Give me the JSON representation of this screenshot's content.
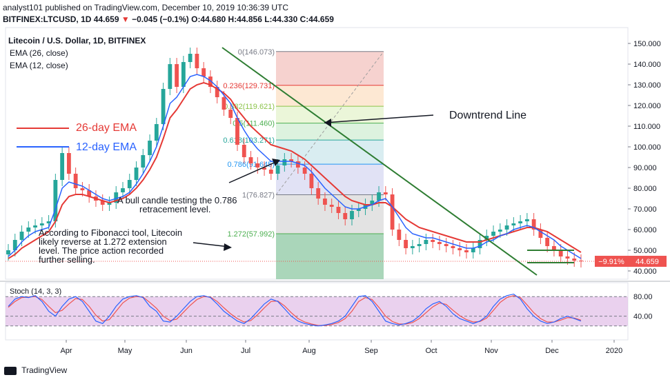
{
  "header": {
    "publisher_line": "analyst101 published on TradingView.com, December 10, 2019 10:36:39 UTC",
    "symbol": "BITFINEX:LTCUSD, 1D",
    "last": "44.659",
    "change_arrow": "▼",
    "change": "−0.045 (−0.1%)",
    "ohlc": "O:44.680 H:44.856 L:44.330 C:44.659"
  },
  "legend": {
    "title": "Litecoin / U.S. Dollar, 1D, BITFINEX",
    "ema26": "EMA (26, close)",
    "ema12": "EMA (12, close)",
    "ema26_label": "26-day EMA",
    "ema12_label": "12-day EMA"
  },
  "annotations": {
    "downtrend": "Downtrend Line",
    "bull_line1": "A bull candle testing the 0.786",
    "bull_line2": "retracement level.",
    "fib_line1": "According to Fibonacci tool, Litecoin",
    "fib_line2": "likely reverse at 1.272 extension",
    "fib_line3": "level. The price action recorded",
    "fib_line4": "further selling."
  },
  "price_tag": {
    "pct": "−9.91%",
    "value": "44.659"
  },
  "stoch_label": "Stoch (14, 3, 3)",
  "footer": {
    "brand": "TradingView"
  },
  "colors": {
    "ema26": "#e53935",
    "ema12": "#2962ff",
    "up": "#26a69a",
    "down": "#ef5350",
    "trend": "#2e7d32",
    "stoch_bg": "#e1bee7"
  },
  "chart_data": {
    "type": "candlestick",
    "price_axis": {
      "ylim": [
        36,
        155
      ],
      "ticks": [
        40,
        50,
        60,
        70,
        80,
        90,
        100,
        110,
        120,
        130,
        140,
        150
      ]
    },
    "time_axis": {
      "labels": [
        "Apr",
        "May",
        "Jun",
        "Jul",
        "Aug",
        "Sep",
        "Oct",
        "Nov",
        "Dec",
        "2020"
      ]
    },
    "close_series": [
      50,
      55,
      59,
      61,
      62,
      63,
      64,
      84,
      97,
      87,
      80,
      79,
      76,
      74,
      72,
      73,
      78,
      80,
      84,
      90,
      96,
      103,
      111,
      128,
      140,
      129,
      141,
      145,
      138,
      134,
      129,
      124,
      118,
      114,
      101,
      95,
      92,
      90,
      89,
      87,
      91,
      94,
      93,
      90,
      87,
      80,
      75,
      72,
      71,
      68,
      65,
      69,
      70,
      72,
      74,
      78,
      77,
      60,
      55,
      51,
      52,
      53,
      55,
      54,
      53,
      52,
      51,
      50,
      49,
      51,
      55,
      57,
      59,
      60,
      62,
      63,
      64,
      65,
      60,
      56,
      52,
      50,
      47,
      46,
      45,
      44.659
    ],
    "ema26_series": [
      46,
      48,
      51,
      53,
      55,
      57,
      59,
      64,
      72,
      76,
      77,
      77,
      76,
      75,
      74,
      73,
      74,
      75,
      77,
      80,
      84,
      89,
      95,
      104,
      114,
      118,
      123,
      128,
      130,
      131,
      130,
      128,
      126,
      123,
      118,
      114,
      110,
      107,
      104,
      101,
      100,
      99,
      98,
      96,
      94,
      91,
      88,
      85,
      82,
      79,
      76,
      74,
      73,
      72,
      72,
      73,
      73,
      71,
      68,
      65,
      63,
      61,
      60,
      59,
      58,
      57,
      56,
      55,
      54,
      54,
      54,
      55,
      56,
      57,
      58,
      59,
      60,
      61,
      61,
      60,
      59,
      57,
      55,
      53,
      51,
      49
    ],
    "ema12_series": [
      47,
      50,
      54,
      57,
      59,
      60,
      61,
      70,
      80,
      83,
      82,
      81,
      79,
      77,
      75,
      74,
      75,
      76,
      78,
      82,
      87,
      93,
      100,
      110,
      121,
      124,
      129,
      134,
      135,
      134,
      132,
      129,
      125,
      121,
      114,
      108,
      103,
      99,
      96,
      93,
      93,
      93,
      93,
      92,
      91,
      88,
      84,
      80,
      77,
      74,
      71,
      70,
      70,
      71,
      72,
      74,
      75,
      71,
      66,
      61,
      58,
      57,
      56,
      56,
      55,
      54,
      53,
      52,
      51,
      51,
      52,
      54,
      55,
      57,
      58,
      60,
      61,
      62,
      61,
      59,
      57,
      55,
      52,
      50,
      48,
      46
    ],
    "fibonacci": {
      "levels": [
        {
          "label": "0(146.073)",
          "value": 146.073
        },
        {
          "label": "0.236(129.731)",
          "value": 129.731
        },
        {
          "label": "0.382(119.621)",
          "value": 119.621
        },
        {
          "label": "0.5(111.460)",
          "value": 111.46
        },
        {
          "label": "0.618(103.271)",
          "value": 103.271
        },
        {
          "label": "0.786(91.645)",
          "value": 91.645
        },
        {
          "label": "1(76.827)",
          "value": 76.827
        },
        {
          "label": "1.272(57.992)",
          "value": 57.992
        }
      ]
    },
    "downtrend_line": {
      "start": 148,
      "end": 38
    },
    "stochastic": {
      "ticks": [
        40,
        80
      ],
      "k": [
        60,
        75,
        80,
        78,
        82,
        70,
        50,
        40,
        60,
        75,
        80,
        70,
        50,
        30,
        25,
        40,
        60,
        75,
        80,
        82,
        78,
        60,
        50,
        30,
        28,
        40,
        55,
        70,
        80,
        82,
        78,
        65,
        50,
        40,
        30,
        25,
        35,
        50,
        65,
        75,
        70,
        55,
        40,
        30,
        25,
        22,
        20,
        22,
        25,
        30,
        40,
        60,
        80,
        82,
        70,
        50,
        30,
        25,
        22,
        25,
        30,
        40,
        55,
        65,
        70,
        60,
        45,
        35,
        30,
        25,
        30,
        40,
        60,
        75,
        82,
        85,
        75,
        55,
        40,
        30,
        25,
        28,
        35,
        40,
        35,
        30
      ],
      "d": [
        58,
        70,
        78,
        79,
        80,
        74,
        60,
        47,
        52,
        65,
        76,
        74,
        60,
        42,
        30,
        33,
        50,
        67,
        77,
        80,
        79,
        68,
        56,
        40,
        31,
        34,
        48,
        62,
        74,
        80,
        79,
        70,
        57,
        45,
        35,
        28,
        31,
        43,
        57,
        70,
        71,
        61,
        47,
        35,
        28,
        24,
        21,
        21,
        23,
        27,
        35,
        50,
        70,
        78,
        74,
        58,
        40,
        29,
        24,
        24,
        27,
        35,
        47,
        59,
        67,
        64,
        52,
        41,
        33,
        28,
        29,
        36,
        52,
        68,
        78,
        82,
        78,
        63,
        47,
        35,
        28,
        28,
        32,
        37,
        36,
        32
      ]
    }
  }
}
